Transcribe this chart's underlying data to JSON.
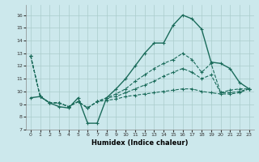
{
  "xlabel": "Humidex (Indice chaleur)",
  "background_color": "#cce8ec",
  "grid_color": "#aacccc",
  "line_color": "#1a6b5a",
  "xlim": [
    -0.5,
    23.5
  ],
  "ylim": [
    7,
    16.8
  ],
  "yticks": [
    7,
    8,
    9,
    10,
    11,
    12,
    13,
    14,
    15,
    16
  ],
  "xticks": [
    0,
    1,
    2,
    3,
    4,
    5,
    6,
    7,
    8,
    9,
    10,
    11,
    12,
    13,
    14,
    15,
    16,
    17,
    18,
    19,
    20,
    21,
    22,
    23
  ],
  "series0": [
    9.5,
    9.6,
    9.1,
    8.8,
    8.7,
    9.5,
    7.5,
    7.5,
    9.5,
    10.2,
    11.0,
    12.0,
    13.0,
    13.8,
    13.8,
    15.2,
    16.0,
    15.7,
    14.9,
    12.3,
    12.2,
    11.8,
    10.7,
    10.2
  ],
  "series1": [
    12.8,
    9.6,
    9.1,
    9.1,
    8.8,
    9.2,
    8.7,
    9.2,
    9.5,
    9.8,
    10.2,
    10.8,
    11.3,
    11.8,
    12.2,
    12.5,
    13.0,
    12.5,
    11.5,
    12.2,
    9.9,
    10.1,
    10.2,
    10.2
  ],
  "series2": [
    12.8,
    9.6,
    9.1,
    9.1,
    8.8,
    9.2,
    8.7,
    9.2,
    9.5,
    9.6,
    9.9,
    10.2,
    10.5,
    10.8,
    11.2,
    11.5,
    11.8,
    11.5,
    11.0,
    11.3,
    9.9,
    9.9,
    10.0,
    10.2
  ],
  "series3": [
    12.8,
    9.6,
    9.1,
    9.1,
    8.8,
    9.2,
    8.7,
    9.2,
    9.3,
    9.4,
    9.6,
    9.7,
    9.8,
    9.9,
    10.0,
    10.1,
    10.2,
    10.2,
    10.0,
    9.9,
    9.8,
    9.8,
    9.9,
    10.2
  ]
}
